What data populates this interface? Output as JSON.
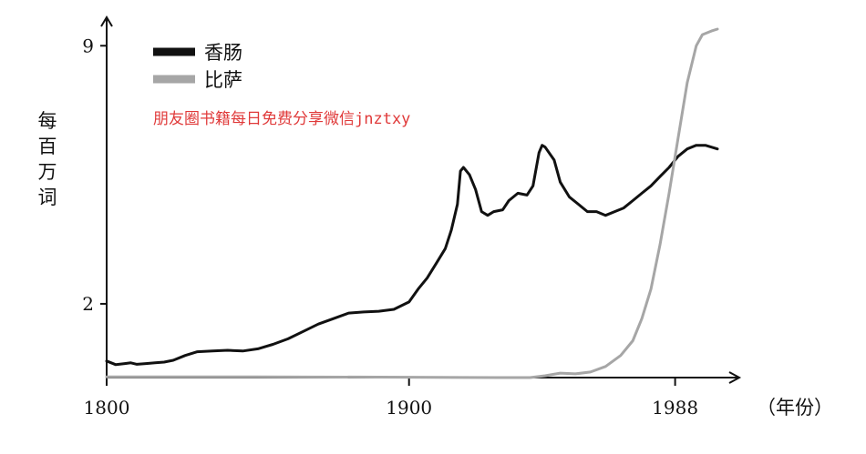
{
  "watermark": "朋友圈书籍每日免费分享微信jnztxy",
  "chart_data": {
    "type": "line",
    "xlabel": "（年份）",
    "ylabel": "每百万词",
    "x_ticks": [
      1800,
      1900,
      1988
    ],
    "y_ticks": [
      2,
      9
    ],
    "xlim": [
      1800,
      2005
    ],
    "ylim": [
      0,
      9.5
    ],
    "legend_position": "top-left",
    "grid": false,
    "series": [
      {
        "name": "香肠",
        "color": "#111111",
        "points": [
          [
            1800,
            0.45
          ],
          [
            1803,
            0.35
          ],
          [
            1806,
            0.38
          ],
          [
            1808,
            0.4
          ],
          [
            1810,
            0.36
          ],
          [
            1813,
            0.38
          ],
          [
            1816,
            0.4
          ],
          [
            1819,
            0.42
          ],
          [
            1822,
            0.47
          ],
          [
            1826,
            0.6
          ],
          [
            1830,
            0.7
          ],
          [
            1835,
            0.72
          ],
          [
            1840,
            0.74
          ],
          [
            1845,
            0.72
          ],
          [
            1850,
            0.78
          ],
          [
            1855,
            0.9
          ],
          [
            1860,
            1.05
          ],
          [
            1865,
            1.25
          ],
          [
            1870,
            1.45
          ],
          [
            1875,
            1.6
          ],
          [
            1880,
            1.75
          ],
          [
            1885,
            1.78
          ],
          [
            1890,
            1.8
          ],
          [
            1895,
            1.85
          ],
          [
            1900,
            2.05
          ],
          [
            1903,
            2.4
          ],
          [
            1906,
            2.7
          ],
          [
            1909,
            3.1
          ],
          [
            1912,
            3.5
          ],
          [
            1914,
            4.0
          ],
          [
            1916,
            4.7
          ],
          [
            1917,
            5.6
          ],
          [
            1918,
            5.7
          ],
          [
            1920,
            5.5
          ],
          [
            1922,
            5.1
          ],
          [
            1924,
            4.5
          ],
          [
            1926,
            4.4
          ],
          [
            1928,
            4.5
          ],
          [
            1931,
            4.55
          ],
          [
            1933,
            4.8
          ],
          [
            1936,
            5.0
          ],
          [
            1939,
            4.95
          ],
          [
            1941,
            5.2
          ],
          [
            1943,
            6.1
          ],
          [
            1944,
            6.3
          ],
          [
            1945,
            6.25
          ],
          [
            1948,
            5.9
          ],
          [
            1950,
            5.3
          ],
          [
            1953,
            4.9
          ],
          [
            1956,
            4.7
          ],
          [
            1959,
            4.5
          ],
          [
            1962,
            4.5
          ],
          [
            1965,
            4.4
          ],
          [
            1968,
            4.5
          ],
          [
            1971,
            4.6
          ],
          [
            1974,
            4.8
          ],
          [
            1977,
            5.0
          ],
          [
            1980,
            5.2
          ],
          [
            1983,
            5.45
          ],
          [
            1986,
            5.7
          ],
          [
            1989,
            6.0
          ],
          [
            1992,
            6.2
          ],
          [
            1995,
            6.3
          ],
          [
            1998,
            6.3
          ],
          [
            2002,
            6.2
          ]
        ]
      },
      {
        "name": "比萨",
        "color": "#a6a6a6",
        "points": [
          [
            1800,
            0.02
          ],
          [
            1850,
            0.02
          ],
          [
            1900,
            0.01
          ],
          [
            1930,
            0.0
          ],
          [
            1940,
            0.0
          ],
          [
            1945,
            0.05
          ],
          [
            1950,
            0.12
          ],
          [
            1955,
            0.1
          ],
          [
            1960,
            0.15
          ],
          [
            1965,
            0.3
          ],
          [
            1970,
            0.6
          ],
          [
            1974,
            1.0
          ],
          [
            1977,
            1.6
          ],
          [
            1980,
            2.4
          ],
          [
            1983,
            3.6
          ],
          [
            1986,
            5.0
          ],
          [
            1989,
            6.5
          ],
          [
            1992,
            8.0
          ],
          [
            1995,
            9.0
          ],
          [
            1997,
            9.3
          ],
          [
            2000,
            9.4
          ],
          [
            2002,
            9.45
          ]
        ]
      }
    ]
  }
}
